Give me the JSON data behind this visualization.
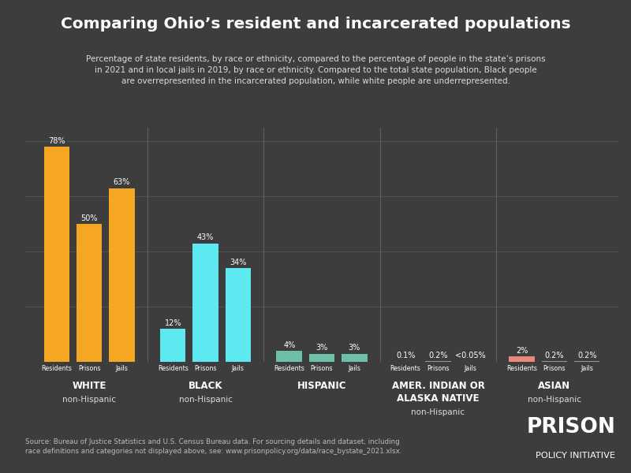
{
  "title": "Comparing Ohio’s resident and incarcerated populations",
  "subtitle": "Percentage of state residents, by race or ethnicity, compared to the percentage of people in the state’s prisons\nin 2021 and in local jails in 2019, by race or ethnicity. Compared to the total state population, Black people\nare overrepresented in the incarcerated population, while white people are underrepresented.",
  "background_color": "#3d3d3d",
  "text_color": "#ffffff",
  "subtitle_color": "#dddddd",
  "grid_color": "#555555",
  "divider_color": "#606060",
  "groups": [
    {
      "label": "WHITE",
      "sublabel": "non-Hispanic",
      "values": [
        78,
        50,
        63
      ],
      "bar_colors": [
        "#f5a623",
        "#f5a623",
        "#f5a623"
      ],
      "value_labels": [
        "78%",
        "50%",
        "63%"
      ]
    },
    {
      "label": "BLACK",
      "sublabel": "non-Hispanic",
      "values": [
        12,
        43,
        34
      ],
      "bar_colors": [
        "#5ee8f0",
        "#5ee8f0",
        "#5ee8f0"
      ],
      "value_labels": [
        "12%",
        "43%",
        "34%"
      ]
    },
    {
      "label": "HISPANIC",
      "sublabel": "",
      "values": [
        4,
        3,
        3
      ],
      "bar_colors": [
        "#6dbfa8",
        "#6dbfa8",
        "#6dbfa8"
      ],
      "value_labels": [
        "4%",
        "3%",
        "3%"
      ]
    },
    {
      "label": "AMER. INDIAN OR\nALASKA NATIVE",
      "sublabel": "non-Hispanic",
      "values": [
        0.1,
        0.2,
        0.049
      ],
      "bar_colors": [
        "#999999",
        "#999999",
        "#999999"
      ],
      "value_labels": [
        "0.1%",
        "0.2%",
        "<0.05%"
      ]
    },
    {
      "label": "ASIAN",
      "sublabel": "non-Hispanic",
      "values": [
        2,
        0.2,
        0.2
      ],
      "bar_colors": [
        "#e8897a",
        "#999999",
        "#999999"
      ],
      "value_labels": [
        "2%",
        "0.2%",
        "0.2%"
      ]
    }
  ],
  "bar_labels": [
    "Residents",
    "Prisons",
    "Jails"
  ],
  "ylim": [
    0,
    85
  ],
  "source_text": "Source: Bureau of Justice Statistics and U.S. Census Bureau data. For sourcing details and dataset, including\nrace definitions and categories not displayed above, see: www.prisonpolicy.org/data/race_bystate_2021.xlsx.",
  "logo_line1": "PRISON",
  "logo_line2": "POLICY INITIATIVE"
}
